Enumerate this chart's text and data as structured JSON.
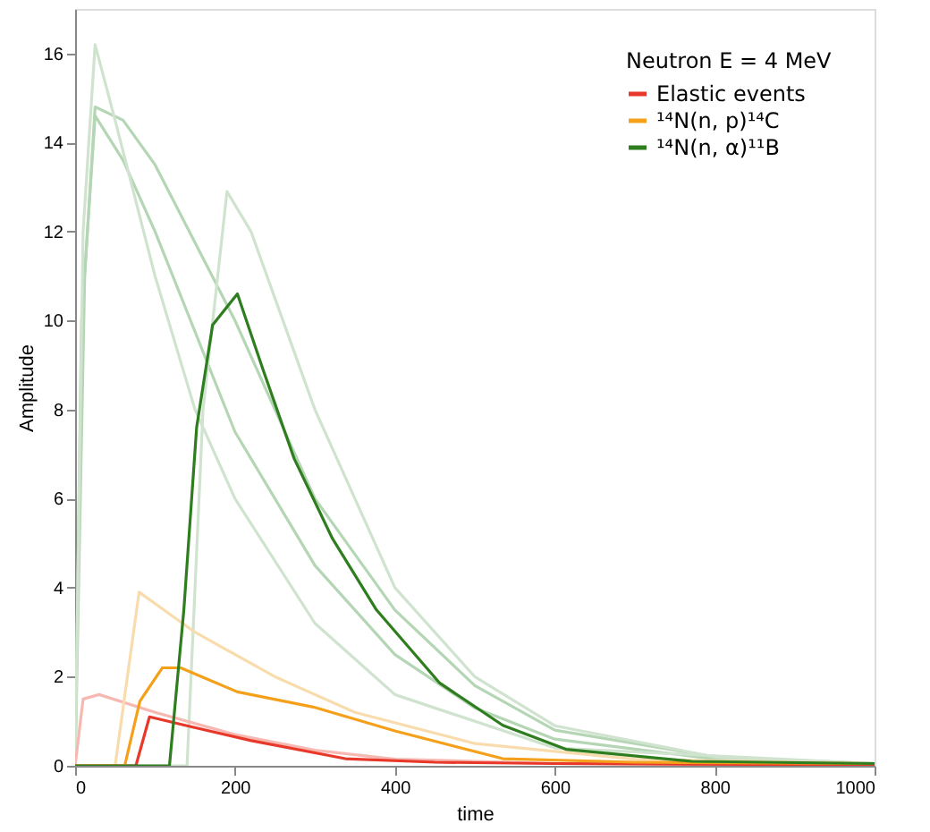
{
  "chart_data": {
    "type": "line",
    "xlabel": "time",
    "ylabel": "Amplitude",
    "legend_title": "Neutron E = 4 MeV",
    "xlim": [
      0,
      1000
    ],
    "ylim": [
      0,
      17
    ],
    "xticks": [
      0,
      200,
      400,
      600,
      800,
      1000
    ],
    "yticks": [
      0,
      2,
      4,
      6,
      8,
      10,
      12,
      14,
      16
    ],
    "grid": false,
    "legend": "top right",
    "marker": "none",
    "line_style": "solid",
    "series": [
      {
        "color": "#b5d6b5",
        "x": [
          0,
          8,
          25,
          60,
          100,
          200,
          300,
          400,
          500,
          600,
          800,
          1000
        ],
        "values": [
          0,
          10,
          14.6,
          13.6,
          12,
          7.5,
          4.5,
          2.5,
          1.3,
          0.6,
          0.15,
          0.05
        ]
      },
      {
        "color": "#b5d6b5",
        "x": [
          0,
          12,
          25,
          60,
          100,
          200,
          300,
          400,
          500,
          600,
          800,
          1000
        ],
        "values": [
          0,
          11,
          14.8,
          14.5,
          13.5,
          10,
          6,
          3.5,
          1.8,
          0.8,
          0.2,
          0.05
        ]
      },
      {
        "color": "#cfe3cf",
        "x": [
          0,
          10,
          25,
          50,
          100,
          150,
          200,
          300,
          400,
          600,
          1000
        ],
        "values": [
          0,
          12,
          16.2,
          14.5,
          11,
          8,
          6,
          3.2,
          1.6,
          0.4,
          0.05
        ]
      },
      {
        "color": "#cfe3cf",
        "x": [
          0,
          140,
          160,
          190,
          220,
          260,
          300,
          400,
          500,
          600,
          800,
          1000
        ],
        "values": [
          0,
          0,
          8,
          12.9,
          12,
          10,
          8,
          4,
          2,
          0.9,
          0.2,
          0.05
        ]
      },
      {
        "color": "#f6b8b1",
        "x": [
          0,
          10,
          30,
          100,
          200,
          300,
          400,
          600,
          1000
        ],
        "values": [
          0,
          1.5,
          1.6,
          1.2,
          0.7,
          0.35,
          0.15,
          0.05,
          0.02
        ]
      },
      {
        "color": "#f9dcae",
        "x": [
          0,
          50,
          80,
          150,
          250,
          350,
          500,
          700,
          1000
        ],
        "values": [
          0,
          0,
          3.9,
          3.0,
          2.0,
          1.2,
          0.5,
          0.15,
          0.05
        ]
      },
      {
        "name": "Elastic events",
        "color": "#e8382a",
        "x": [
          0,
          76,
          93,
          140,
          219,
          338,
          450,
          600,
          1000
        ],
        "values": [
          0,
          0,
          1.1,
          0.9,
          0.57,
          0.16,
          0.08,
          0.05,
          0.02
        ]
      },
      {
        "name": "¹⁴N(n, p)¹⁴C",
        "color": "#f5a01a",
        "x": [
          0,
          62,
          81,
          109,
          132,
          203,
          298,
          401,
          535,
          700,
          1000
        ],
        "values": [
          0,
          0,
          1.45,
          2.2,
          2.2,
          1.66,
          1.32,
          0.78,
          0.16,
          0.08,
          0.05
        ]
      },
      {
        "name": "¹⁴N(n, α)¹¹B",
        "color": "#2e7d1e",
        "x": [
          0,
          118,
          136,
          152,
          172,
          203,
          235,
          274,
          322,
          377,
          456,
          535,
          614,
          771,
          1000
        ],
        "values": [
          0,
          0,
          3.5,
          7.6,
          9.9,
          10.6,
          8.9,
          6.9,
          5.1,
          3.5,
          1.86,
          0.91,
          0.37,
          0.1,
          0.05
        ]
      }
    ]
  }
}
